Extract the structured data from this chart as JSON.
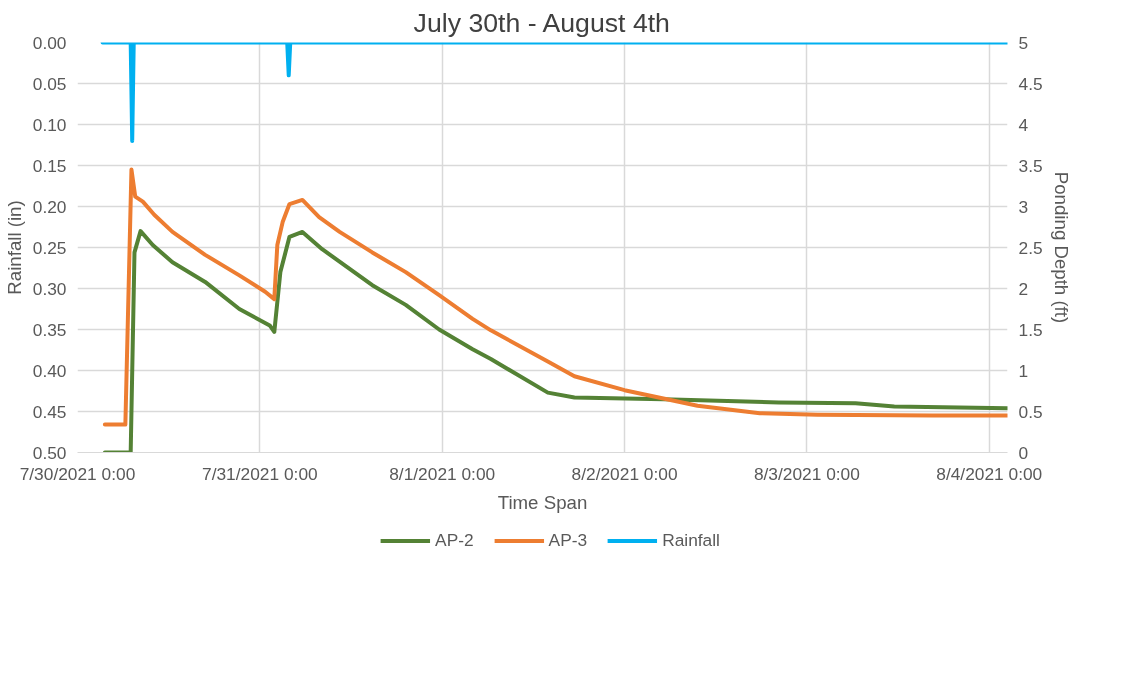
{
  "chart_data": {
    "type": "line",
    "title": "July 30th - August 4th",
    "xlabel": "Time Span",
    "ylabel": "Rainfall (in)",
    "y2label": "Ponding Depth (ft)",
    "xlim": [
      "2021-07-30T00:00",
      "2021-08-04T02:24"
    ],
    "xticks": [
      {
        "value": "2021-07-30T00:00",
        "label": "7/30/2021 0:00"
      },
      {
        "value": "2021-07-31T00:00",
        "label": "7/31/2021 0:00"
      },
      {
        "value": "2021-08-01T00:00",
        "label": "8/1/2021 0:00"
      },
      {
        "value": "2021-08-02T00:00",
        "label": "8/2/2021 0:00"
      },
      {
        "value": "2021-08-03T00:00",
        "label": "8/3/2021 0:00"
      },
      {
        "value": "2021-08-04T00:00",
        "label": "8/4/2021 0:00"
      }
    ],
    "ylim": [
      0.5,
      0
    ],
    "yticks": [
      {
        "value": 0,
        "label": "0.00"
      },
      {
        "value": 0.05,
        "label": "0.05"
      },
      {
        "value": 0.1,
        "label": "0.10"
      },
      {
        "value": 0.15,
        "label": "0.15"
      },
      {
        "value": 0.2,
        "label": "0.20"
      },
      {
        "value": 0.25,
        "label": "0.25"
      },
      {
        "value": 0.3,
        "label": "0.30"
      },
      {
        "value": 0.35,
        "label": "0.35"
      },
      {
        "value": 0.4,
        "label": "0.40"
      },
      {
        "value": 0.45,
        "label": "0.45"
      },
      {
        "value": 0.5,
        "label": "0.50"
      }
    ],
    "y2lim": [
      0,
      5
    ],
    "y2ticks": [
      0,
      0.5,
      1,
      1.5,
      2,
      2.5,
      3,
      3.5,
      4,
      4.5,
      5
    ],
    "grid": true,
    "legend": "bottom",
    "marker": "none",
    "line_style": "solid",
    "series": [
      {
        "name": "AP-2",
        "color": "#548235",
        "axis": "y2",
        "x": [
          "2021-07-30T03:36",
          "2021-07-30T07:00",
          "2021-07-30T07:30",
          "2021-07-30T08:18",
          "2021-07-30T09:54",
          "2021-07-30T12:30",
          "2021-07-30T16:48",
          "2021-07-30T21:18",
          "2021-07-31T01:18",
          "2021-07-31T01:54",
          "2021-07-31T02:42",
          "2021-07-31T03:54",
          "2021-07-31T05:36",
          "2021-07-31T08:12",
          "2021-07-31T14:48",
          "2021-07-31T19:12",
          "2021-07-31T23:36",
          "2021-08-01T04:00",
          "2021-08-01T06:24",
          "2021-08-01T13:54",
          "2021-08-01T17:24",
          "2021-08-02T05:06",
          "2021-08-02T20:18",
          "2021-08-03T06:24",
          "2021-08-03T11:30",
          "2021-08-04T02:24"
        ],
        "values": [
          0,
          0,
          2.44,
          2.7,
          2.53,
          2.32,
          2.08,
          1.75,
          1.55,
          1.47,
          2.2,
          2.63,
          2.69,
          2.48,
          2.04,
          1.8,
          1.5,
          1.26,
          1.14,
          0.73,
          0.67,
          0.65,
          0.61,
          0.6,
          0.56,
          0.54
        ]
      },
      {
        "name": "AP-3",
        "color": "#ed7d31",
        "axis": "y2",
        "x": [
          "2021-07-30T03:36",
          "2021-07-30T06:18",
          "2021-07-30T07:06",
          "2021-07-30T07:36",
          "2021-07-30T08:36",
          "2021-07-30T10:06",
          "2021-07-30T12:30",
          "2021-07-30T16:48",
          "2021-07-30T21:18",
          "2021-07-31T00:42",
          "2021-07-31T01:54",
          "2021-07-31T02:18",
          "2021-07-31T03:00",
          "2021-07-31T03:54",
          "2021-07-31T05:36",
          "2021-07-31T07:48",
          "2021-07-31T10:30",
          "2021-07-31T14:48",
          "2021-07-31T19:12",
          "2021-07-31T23:36",
          "2021-08-01T04:00",
          "2021-08-01T06:24",
          "2021-08-01T13:54",
          "2021-08-01T17:24",
          "2021-08-02T00:00",
          "2021-08-02T09:36",
          "2021-08-02T17:48",
          "2021-08-03T01:24",
          "2021-08-03T16:30",
          "2021-08-04T02:24"
        ],
        "values": [
          0.34,
          0.34,
          3.45,
          3.12,
          3.06,
          2.9,
          2.69,
          2.41,
          2.16,
          1.96,
          1.87,
          2.53,
          2.81,
          3.03,
          3.08,
          2.87,
          2.69,
          2.44,
          2.2,
          1.92,
          1.63,
          1.49,
          1.11,
          0.93,
          0.76,
          0.57,
          0.48,
          0.46,
          0.45,
          0.45
        ]
      },
      {
        "name": "Rainfall",
        "color": "#00b0f0",
        "x": [
          "2021-07-30T03:18",
          "2021-07-30T07:00",
          "2021-07-30T07:12",
          "2021-07-30T07:24",
          "2021-07-31T03:36",
          "2021-07-31T03:48",
          "2021-07-31T04:00",
          "2021-08-04T02:24"
        ],
        "values": [
          0,
          0,
          0.12,
          0,
          0,
          0.04,
          0,
          0
        ]
      }
    ]
  }
}
